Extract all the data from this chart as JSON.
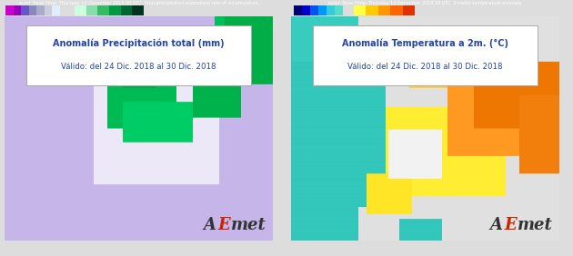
{
  "left_title_line1": "Anomalía Precipitación total (mm)",
  "left_title_line2": "Válido: del 24 Dic. 2018 al 30 Dic. 2018",
  "right_title_line1": "Anomalía Temperatura a 2m. (°C)",
  "right_title_line2": "Válido: del 24 Dic. 2018 al 30 Dic. 2018",
  "left_bg": "#c9b8e8",
  "left_sea_dark": "#bbaad8",
  "left_land_neutral": "#ddd8ee",
  "left_green_dark": "#009944",
  "left_green_mid": "#00bb55",
  "left_green_light": "#55cc77",
  "left_white_land": "#f5f3fa",
  "right_bg": "#e2e2e2",
  "right_cyan": "#33ccbb",
  "right_cyan2": "#44ddcc",
  "right_yellow": "#ffee44",
  "right_orange": "#ff9922",
  "right_orange_dark": "#ee7700",
  "right_white": "#f0f0f0",
  "left_colorbar_neg": [
    "#cc00cc",
    "#9900bb",
    "#6655cc",
    "#8888bb",
    "#aaaacc",
    "#ccccdd",
    "#ddeeff"
  ],
  "left_colorbar_pos": [
    "#ccffdd",
    "#88ddaa",
    "#33bb66",
    "#009944",
    "#006633",
    "#003322"
  ],
  "right_colorbar_neg": [
    "#000077",
    "#0000cc",
    "#0055ee",
    "#0099ff",
    "#33ccdd",
    "#55ddcc"
  ],
  "right_colorbar_pos": [
    "#ffff44",
    "#ffcc00",
    "#ff9900",
    "#ff6600",
    "#dd3300"
  ],
  "title_color": "#2244aa",
  "aemet_a_color": "#333333",
  "aemet_e_color": "#cc2200",
  "fig_bg": "#dddddd",
  "panel_border": "#999999",
  "top_bar_left": "#222244",
  "top_bar_right": "#222244"
}
